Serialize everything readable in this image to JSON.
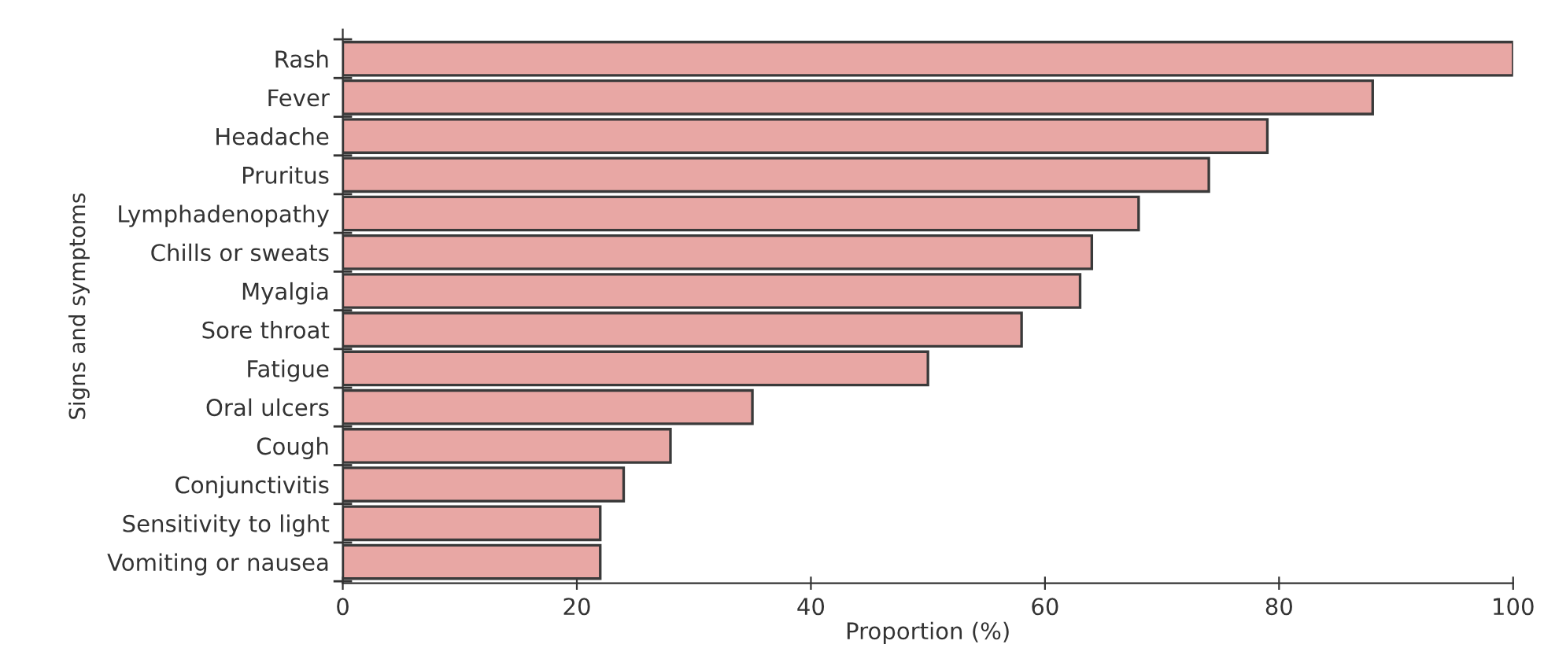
{
  "chart_data": {
    "type": "bar",
    "orientation": "horizontal",
    "xlabel": "Proportion (%)",
    "ylabel": "Signs and symptoms",
    "categories": [
      "Rash",
      "Fever",
      "Headache",
      "Pruritus",
      "Lymphadenopathy",
      "Chills or sweats",
      "Myalgia",
      "Sore throat",
      "Fatigue",
      "Oral ulcers",
      "Cough",
      "Conjunctivitis",
      "Sensitivity to light",
      "Vomiting or nausea"
    ],
    "values": [
      100,
      88,
      79,
      74,
      68,
      64,
      63,
      58,
      50,
      35,
      28,
      24,
      22,
      22
    ],
    "color": "#e8a7a4",
    "xlim": [
      0,
      100
    ],
    "xticks": [
      0,
      20,
      40,
      60,
      80,
      100
    ],
    "grid": false,
    "legend": false
  }
}
